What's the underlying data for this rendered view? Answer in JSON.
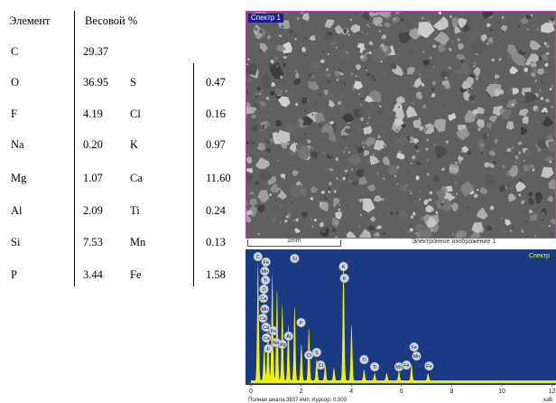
{
  "table": {
    "header_element": "Элемент",
    "header_weight": "Весовой %",
    "rows": [
      {
        "el": "C",
        "val": "29.37",
        "el2": "",
        "val2": ""
      },
      {
        "el": "O",
        "val": "36.95",
        "el2": "S",
        "val2": "0.47"
      },
      {
        "el": "F",
        "val": "4.19",
        "el2": "Cl",
        "val2": "0.16"
      },
      {
        "el": "Na",
        "val": "0.20",
        "el2": "K",
        "val2": "0.97"
      },
      {
        "el": "Mg",
        "val": "1.07",
        "el2": "Ca",
        "val2": "11.60"
      },
      {
        "el": "Al",
        "val": "2.09",
        "el2": "Ti",
        "val2": "0.24"
      },
      {
        "el": "Si",
        "val": "7.53",
        "el2": "Mn",
        "val2": "0.13"
      },
      {
        "el": "P",
        "val": "3.44",
        "el2": "Fe",
        "val2": "1.58"
      }
    ]
  },
  "sem_image": {
    "spectrum_tag": "Спектр 1",
    "scale_label": "1mm",
    "caption": "Электронное изображение 1"
  },
  "spectrum": {
    "title": "Спектр",
    "footer": "Полная шкала 3837 имп. Курсор: 0.000",
    "unit": "кэВ",
    "ticks": [
      "0",
      "2",
      "4",
      "6",
      "8",
      "10",
      "12"
    ],
    "badges": [
      "C",
      "Fe",
      "Mn",
      "Ti",
      "O",
      "Ca",
      "Fe",
      "Mn",
      "Ca",
      "Ca",
      "Ca",
      "Si",
      "Al",
      "Mg",
      "Na",
      "F",
      "P",
      "Cl",
      "S",
      "Cl",
      "K",
      "K",
      "Ti",
      "Ti",
      "Mn",
      "Fe",
      "Mn",
      "Fe",
      "Fe"
    ],
    "colors": {
      "background": "#1b3a84",
      "peaks": "#f2f200",
      "badge": "#cfd6e4"
    }
  }
}
